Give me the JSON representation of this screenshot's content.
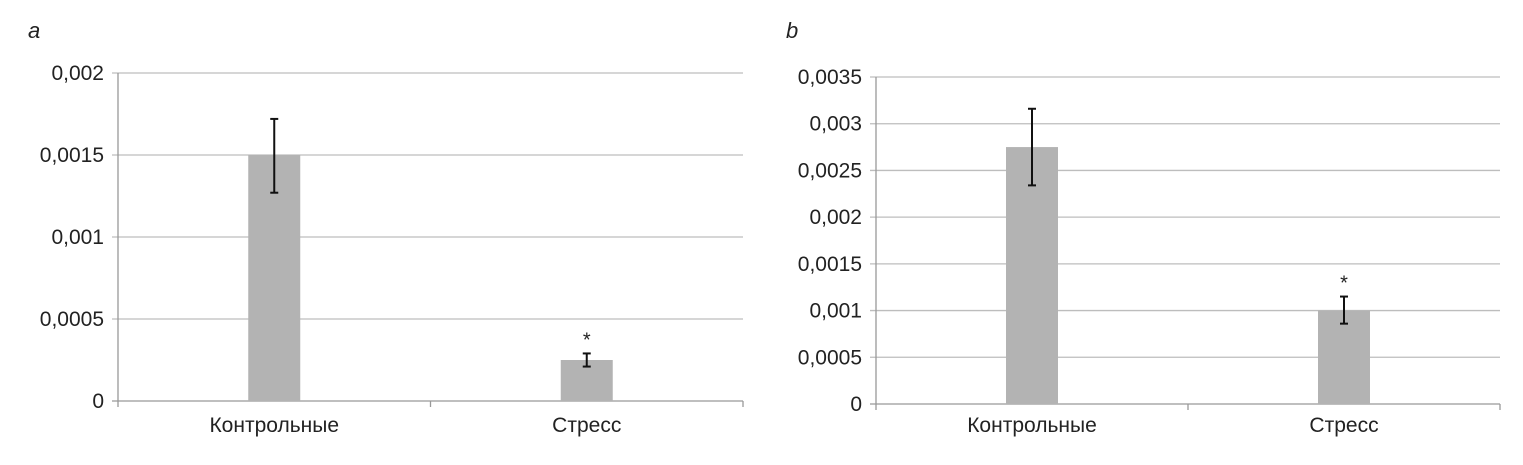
{
  "chart_data": [
    {
      "panel": "a",
      "type": "bar",
      "categories": [
        "Контрольные",
        "Стресс"
      ],
      "values": [
        0.0015,
        0.00025
      ],
      "error_upper": [
        0.00172,
        0.00029
      ],
      "error_lower": [
        0.00127,
        0.00021
      ],
      "annotations": [
        "",
        "*"
      ],
      "ylim": [
        0,
        0.002
      ],
      "yticks": [
        0,
        0.0005,
        0.001,
        0.0015,
        0.002
      ],
      "ytick_labels": [
        "0",
        "0,0005",
        "0,001",
        "0,0015",
        "0,002"
      ],
      "grid": true,
      "colors": {
        "bar": "#b3b3b3",
        "grid": "#bdbdbd",
        "axis": "#999999",
        "error": "#111111"
      }
    },
    {
      "panel": "b",
      "type": "bar",
      "categories": [
        "Контрольные",
        "Стресс"
      ],
      "values": [
        0.00275,
        0.001
      ],
      "error_upper": [
        0.00316,
        0.00115
      ],
      "error_lower": [
        0.00234,
        0.00086
      ],
      "annotations": [
        "",
        "*"
      ],
      "ylim": [
        0,
        0.0035
      ],
      "yticks": [
        0,
        0.0005,
        0.001,
        0.0015,
        0.002,
        0.0025,
        0.003,
        0.0035
      ],
      "ytick_labels": [
        "0",
        "0,0005",
        "0,001",
        "0,0015",
        "0,002",
        "0,0025",
        "0,003",
        "0,0035"
      ],
      "grid": true,
      "colors": {
        "bar": "#b3b3b3",
        "grid": "#bdbdbd",
        "axis": "#999999",
        "error": "#111111"
      }
    }
  ]
}
